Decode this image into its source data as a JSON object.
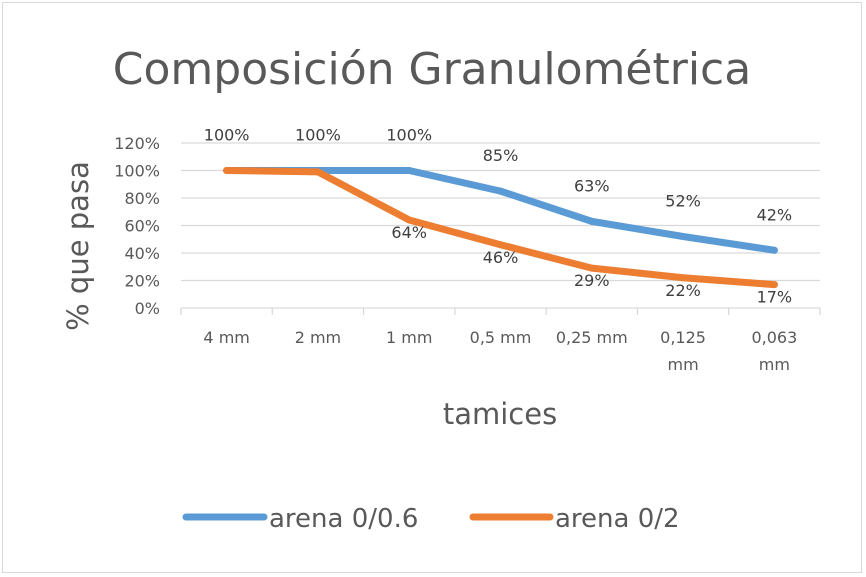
{
  "chart_data": {
    "type": "line",
    "title": "Composición Granulométrica",
    "xlabel": "tamices",
    "ylabel": "% que pasa",
    "categories": [
      "4 mm",
      "2 mm",
      "1 mm",
      "0,5 mm",
      "0,25 mm",
      "0,125 mm",
      "0,063 mm"
    ],
    "series": [
      {
        "name": "arena 0/0.6",
        "color": "#5b9bd5",
        "values": [
          100,
          100,
          100,
          85,
          63,
          52,
          42
        ],
        "labels": [
          "100%",
          "100%",
          "100%",
          "85%",
          "63%",
          "52%",
          "42%"
        ]
      },
      {
        "name": "arena 0/2",
        "color": "#ed7d31",
        "values": [
          100,
          99,
          64,
          46,
          29,
          22,
          17
        ],
        "labels": [
          "",
          "",
          "64%",
          "46%",
          "29%",
          "22%",
          "17%"
        ]
      }
    ],
    "ylim": [
      0,
      120
    ],
    "yticks": [
      "0%",
      "20%",
      "40%",
      "60%",
      "80%",
      "100%",
      "120%"
    ],
    "grid": true,
    "legend_position": "bottom"
  }
}
